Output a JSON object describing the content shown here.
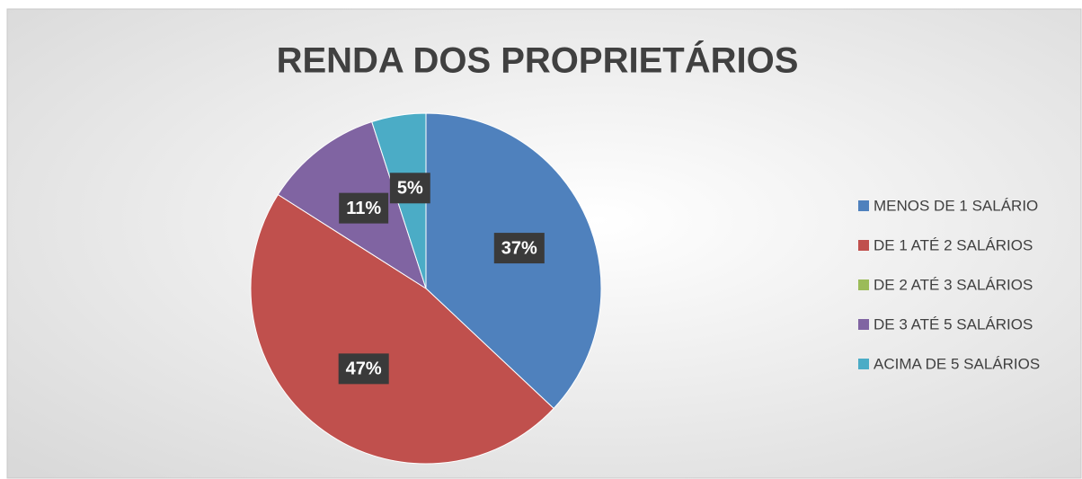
{
  "chart_data": {
    "type": "pie",
    "title": "RENDA DOS PROPRIETÁRIOS",
    "categories": [
      "MENOS DE 1 SALÁRIO",
      "DE 1 ATÉ 2 SALÁRIOS",
      "DE 2 ATÉ 3 SALÁRIOS",
      "DE 3 ATÉ 5 SALÁRIOS",
      "ACIMA DE 5 SALÁRIOS"
    ],
    "values": [
      37,
      47,
      0,
      11,
      5
    ],
    "value_labels": [
      "37%",
      "47%",
      null,
      "11%",
      "5%"
    ],
    "colors": [
      "#4f81bd",
      "#c0504d",
      "#9bbb59",
      "#8064a2",
      "#4bacc6"
    ],
    "legend": "right"
  }
}
